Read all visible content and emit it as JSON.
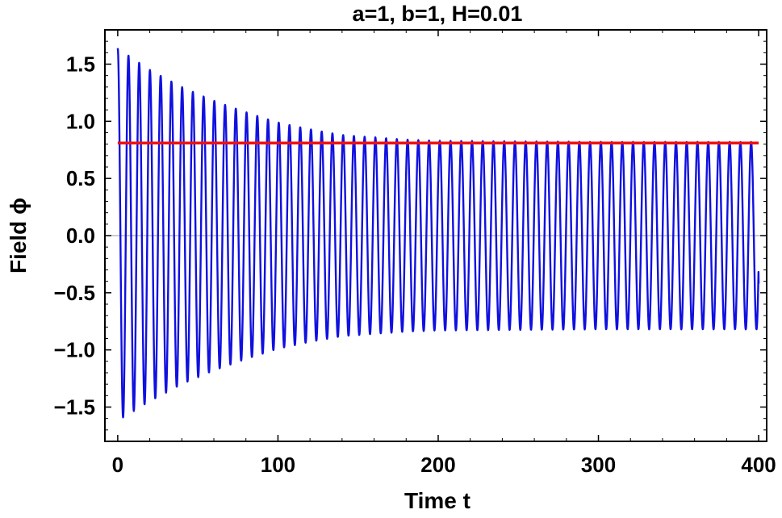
{
  "chart_data": {
    "type": "line",
    "title": "a=1, b=1, H=0.01",
    "xlabel": "Time t",
    "ylabel": "Field ϕ",
    "xlim": [
      -8,
      405
    ],
    "ylim": [
      -1.8,
      1.8
    ],
    "x_ticks": [
      {
        "value": 0,
        "label": "0"
      },
      {
        "value": 100,
        "label": "100"
      },
      {
        "value": 200,
        "label": "200"
      },
      {
        "value": 300,
        "label": "300"
      },
      {
        "value": 400,
        "label": "400"
      }
    ],
    "y_ticks": [
      {
        "value": 1.5,
        "label": "1.5"
      },
      {
        "value": 1.0,
        "label": "1.0"
      },
      {
        "value": 0.5,
        "label": "0.5"
      },
      {
        "value": 0.0,
        "label": "0.0"
      },
      {
        "value": -0.5,
        "label": "−0.5"
      },
      {
        "value": -1.0,
        "label": "−1.0"
      },
      {
        "value": -1.5,
        "label": "−1.5"
      }
    ],
    "grid": false,
    "zero_line": true,
    "series": [
      {
        "color": "#1010e0",
        "style": "damped-oscillation",
        "x_range": [
          0,
          400
        ],
        "initial_value": 1.64,
        "period": 6.7,
        "envelope_top": [
          [
            0,
            1.64
          ],
          [
            20,
            1.45
          ],
          [
            40,
            1.3
          ],
          [
            60,
            1.18
          ],
          [
            80,
            1.08
          ],
          [
            100,
            0.99
          ],
          [
            120,
            0.93
          ],
          [
            140,
            0.88
          ],
          [
            160,
            0.86
          ],
          [
            180,
            0.84
          ],
          [
            200,
            0.83
          ],
          [
            250,
            0.825
          ],
          [
            300,
            0.82
          ],
          [
            400,
            0.82
          ]
        ],
        "envelope_bottom": [
          [
            0,
            -1.62
          ],
          [
            20,
            -1.45
          ],
          [
            40,
            -1.3
          ],
          [
            60,
            -1.18
          ],
          [
            80,
            -1.08
          ],
          [
            100,
            -0.99
          ],
          [
            120,
            -0.93
          ],
          [
            140,
            -0.88
          ],
          [
            160,
            -0.86
          ],
          [
            180,
            -0.84
          ],
          [
            200,
            -0.83
          ],
          [
            250,
            -0.825
          ],
          [
            300,
            -0.82
          ],
          [
            400,
            -0.82
          ]
        ],
        "end_point": [
          400,
          -0.42
        ]
      },
      {
        "color": "#ee1111",
        "style": "constant",
        "x_range": [
          0,
          400
        ],
        "y": 0.81
      }
    ]
  }
}
